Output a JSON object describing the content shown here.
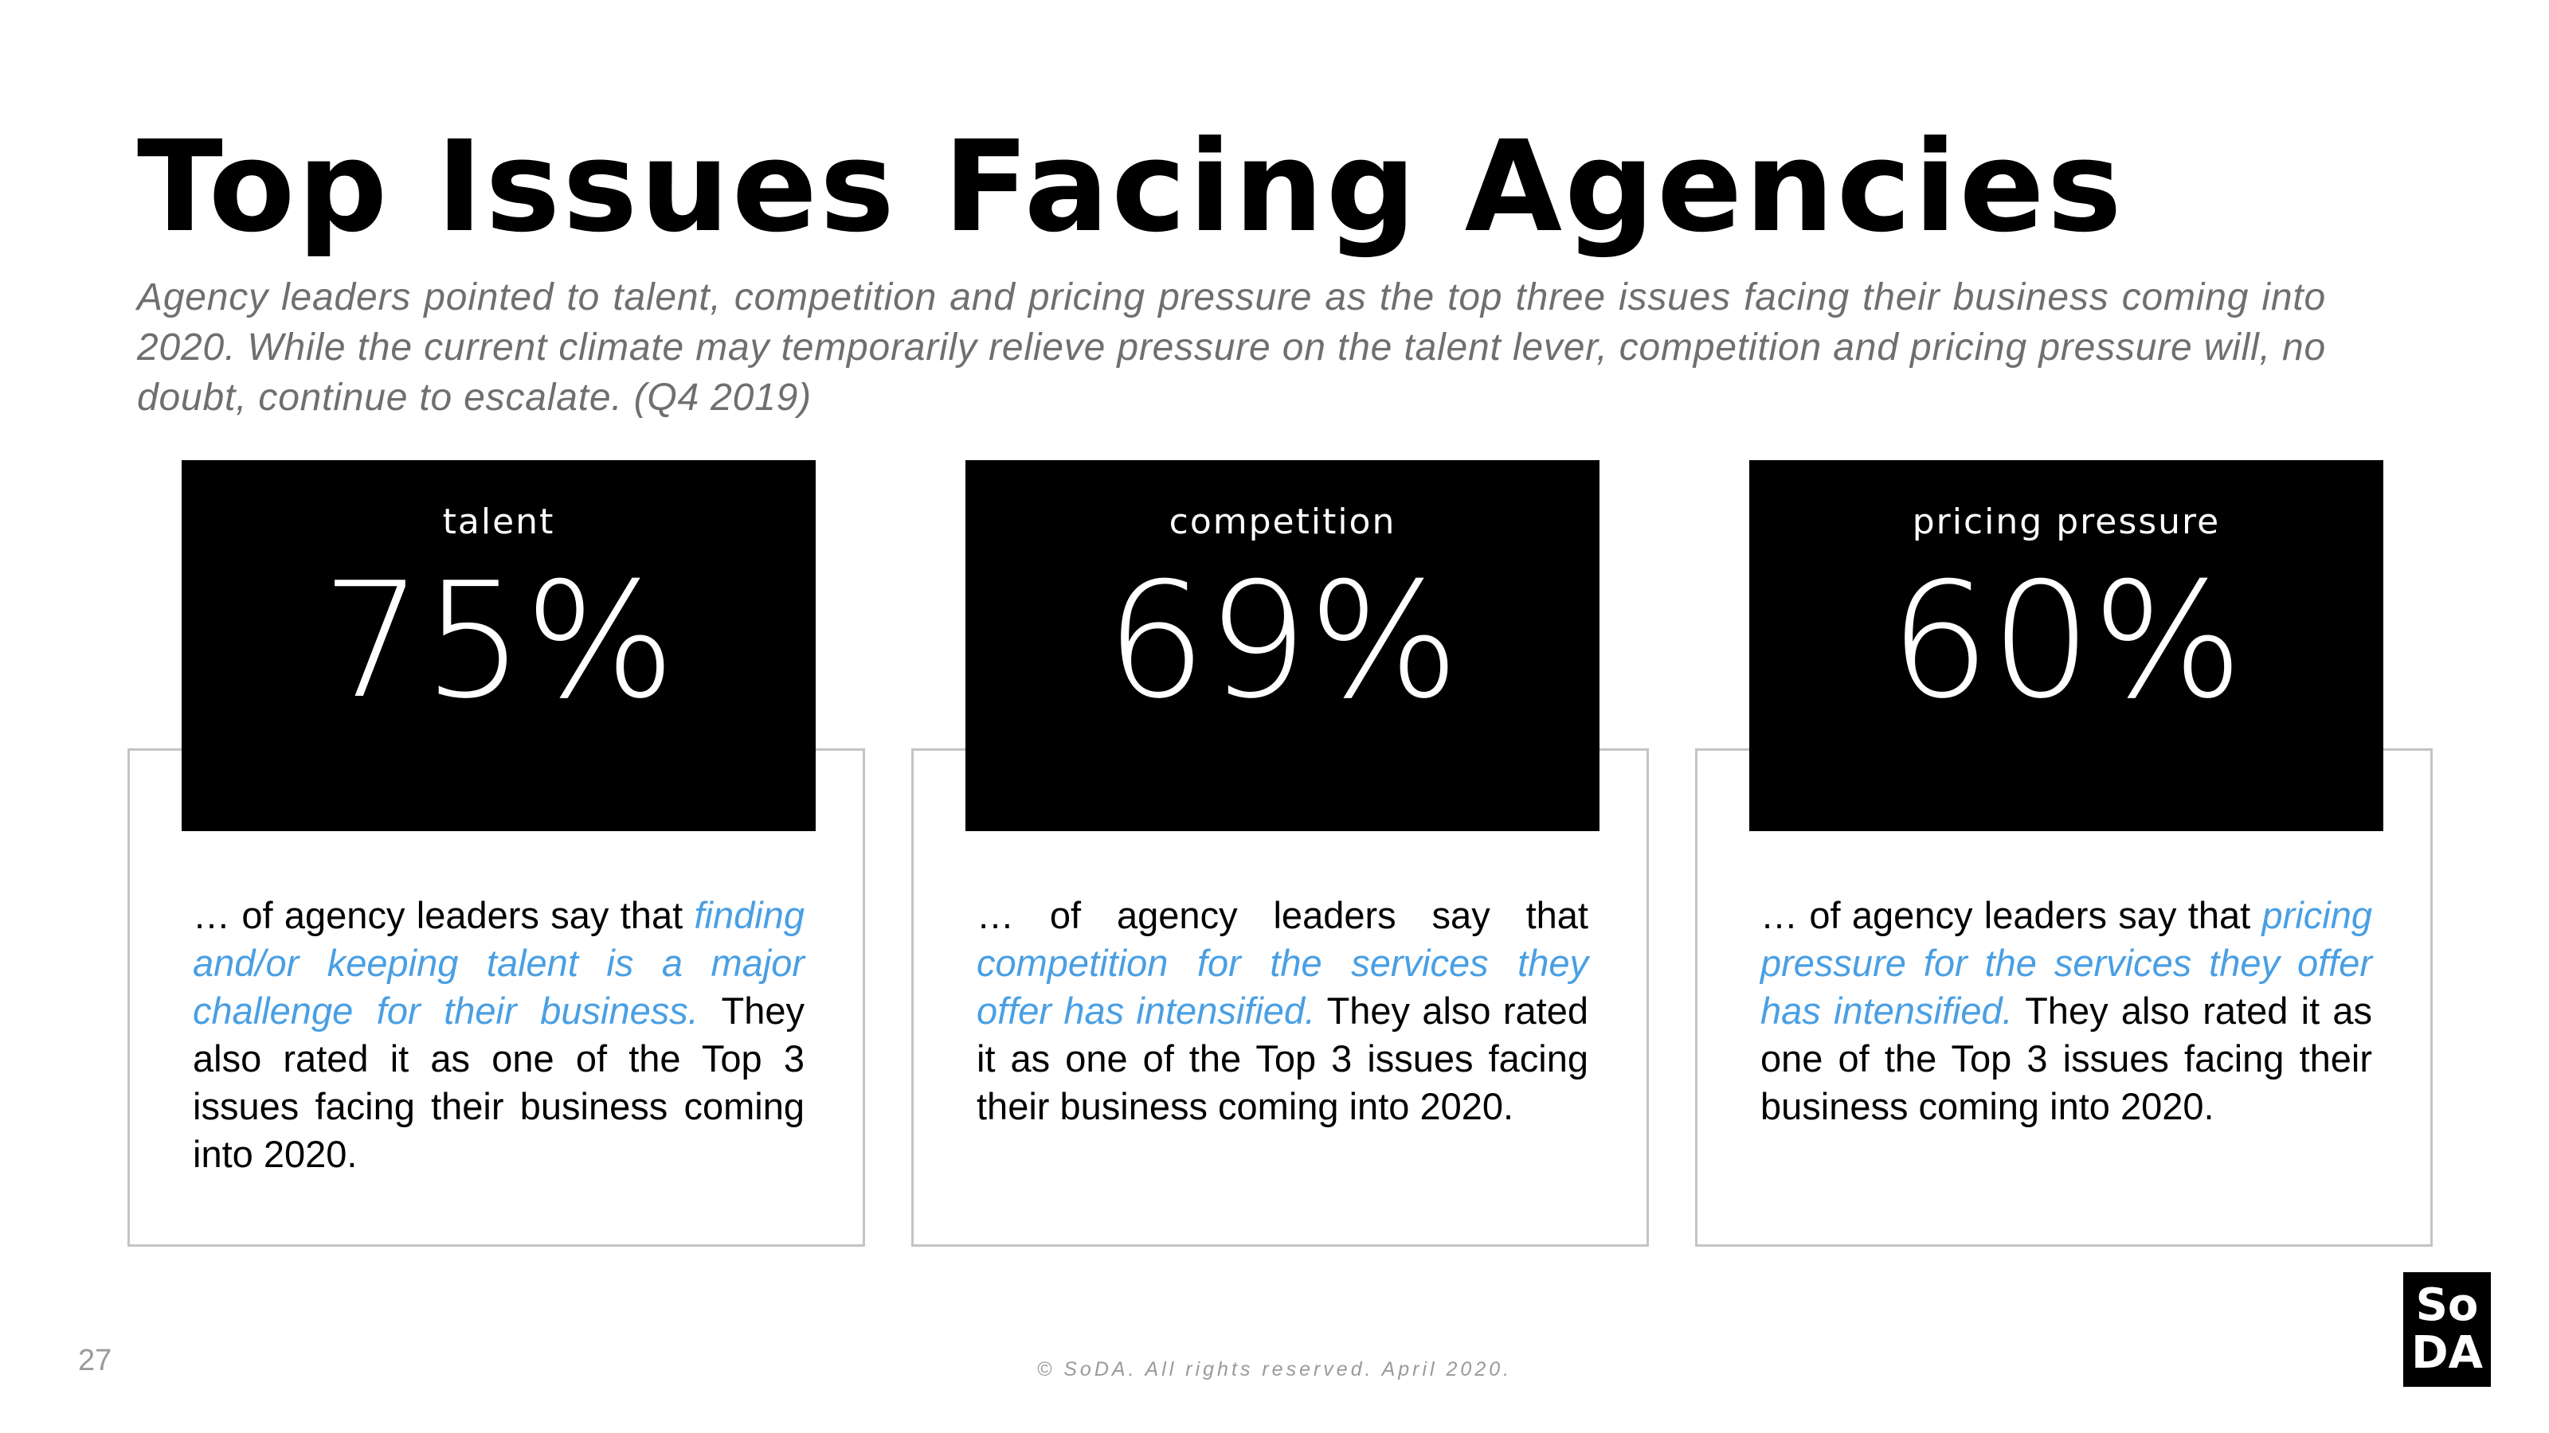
{
  "title": "Top Issues Facing Agencies",
  "subtitle": "Agency leaders pointed to talent, competition and pricing pressure as the top three issues facing their business coming into 2020. While the current climate may temporarily relieve pressure on the talent lever, competition and pricing pressure will, no doubt, continue to escalate. (Q4 2019)",
  "stats": [
    {
      "label": "talent",
      "value": "75%",
      "text_before": "… of agency leaders say that ",
      "highlight": "finding and/or keeping talent is a major challenge for their business.",
      "text_after": " They also rated it as one of the Top 3 issues facing their business coming into 2020."
    },
    {
      "label": "competition",
      "value": "69%",
      "text_before": "… of agency leaders say that ",
      "highlight": "competition for the services they offer has intensified.",
      "text_after": " They also rated it as one of the Top 3 issues facing their business coming into 2020."
    },
    {
      "label": "pricing pressure",
      "value": "60%",
      "text_before": "… of agency leaders say that ",
      "highlight": "pricing pressure for the services they offer has intensified.",
      "text_after": " They also rated it as one of the Top 3 issues facing their business coming into 2020."
    }
  ],
  "footer": {
    "page_number": "27",
    "copyright": "© SoDA. All rights reserved. April 2020.",
    "logo_line1": "So",
    "logo_line2": "DA"
  },
  "colors": {
    "highlight": "#4a9fe3",
    "stat_box": "#000000",
    "subtitle": "#6f6f6f"
  }
}
